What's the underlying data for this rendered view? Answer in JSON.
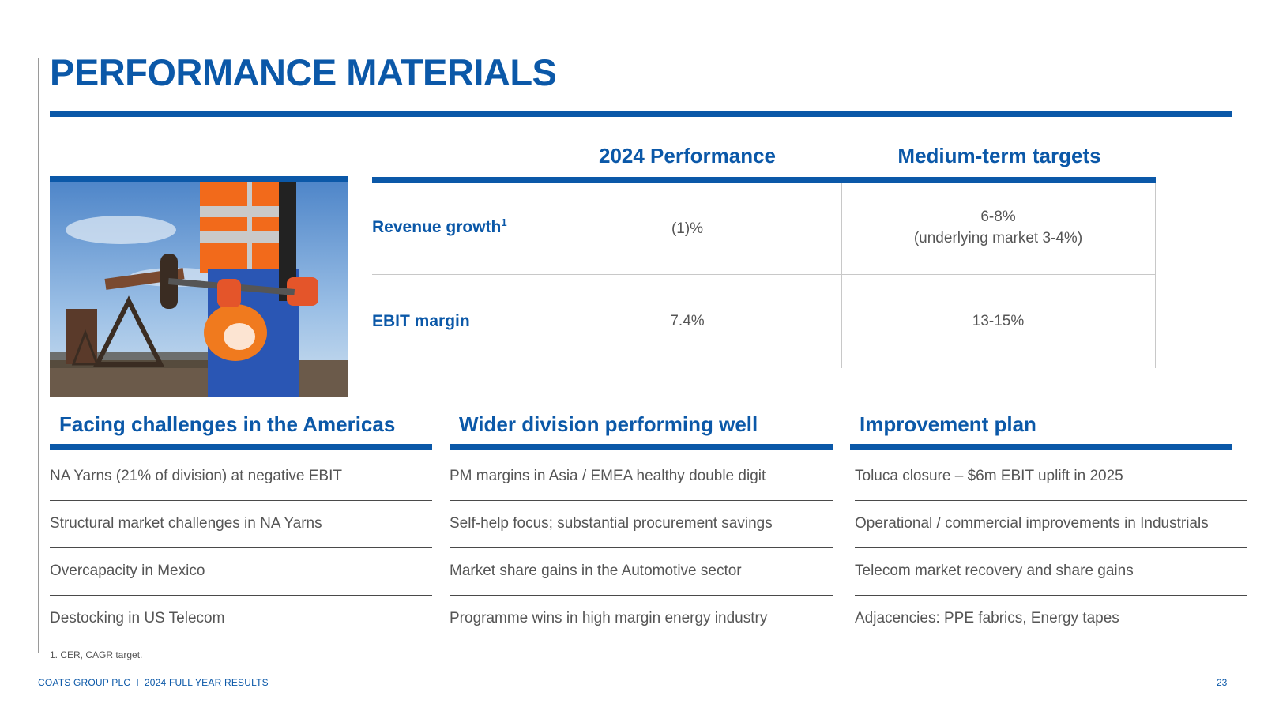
{
  "title": "PERFORMANCE MATERIALS",
  "performance_table": {
    "col_perf": "2024 Performance",
    "col_target": "Medium-term targets",
    "rows": [
      {
        "label": "Revenue growth",
        "footnote_mark": "1",
        "perf": "(1)%",
        "target_line1": "6-8%",
        "target_line2": "(underlying market 3-4%)"
      },
      {
        "label": "EBIT margin",
        "perf": "7.4%",
        "target_line1": "13-15%"
      }
    ]
  },
  "sections": [
    {
      "heading": "Facing challenges in the Americas",
      "items": [
        "NA Yarns (21% of division) at negative EBIT",
        "Structural market challenges in NA Yarns",
        "Overcapacity in Mexico",
        "Destocking in US Telecom"
      ]
    },
    {
      "heading": "Wider division performing well",
      "items": [
        "PM margins in Asia / EMEA healthy double digit",
        "Self-help focus; substantial procurement savings",
        "Market share gains in the Automotive sector",
        "Programme wins in high margin energy industry"
      ]
    },
    {
      "heading": "Improvement plan",
      "items": [
        "Toluca closure – $6m EBIT uplift in 2025",
        "Operational / commercial improvements in Industrials",
        "Telecom market recovery and share gains",
        "Adjacencies: PPE fabrics, Energy tapes"
      ]
    }
  ],
  "footnote": "1. CER, CAGR target.",
  "footer": "COATS GROUP PLC  I  2024 FULL YEAR RESULTS",
  "page_number": "23",
  "colors": {
    "brand_blue": "#0b58a8",
    "body_text": "#555555",
    "vest_orange": "#f26a1b"
  }
}
